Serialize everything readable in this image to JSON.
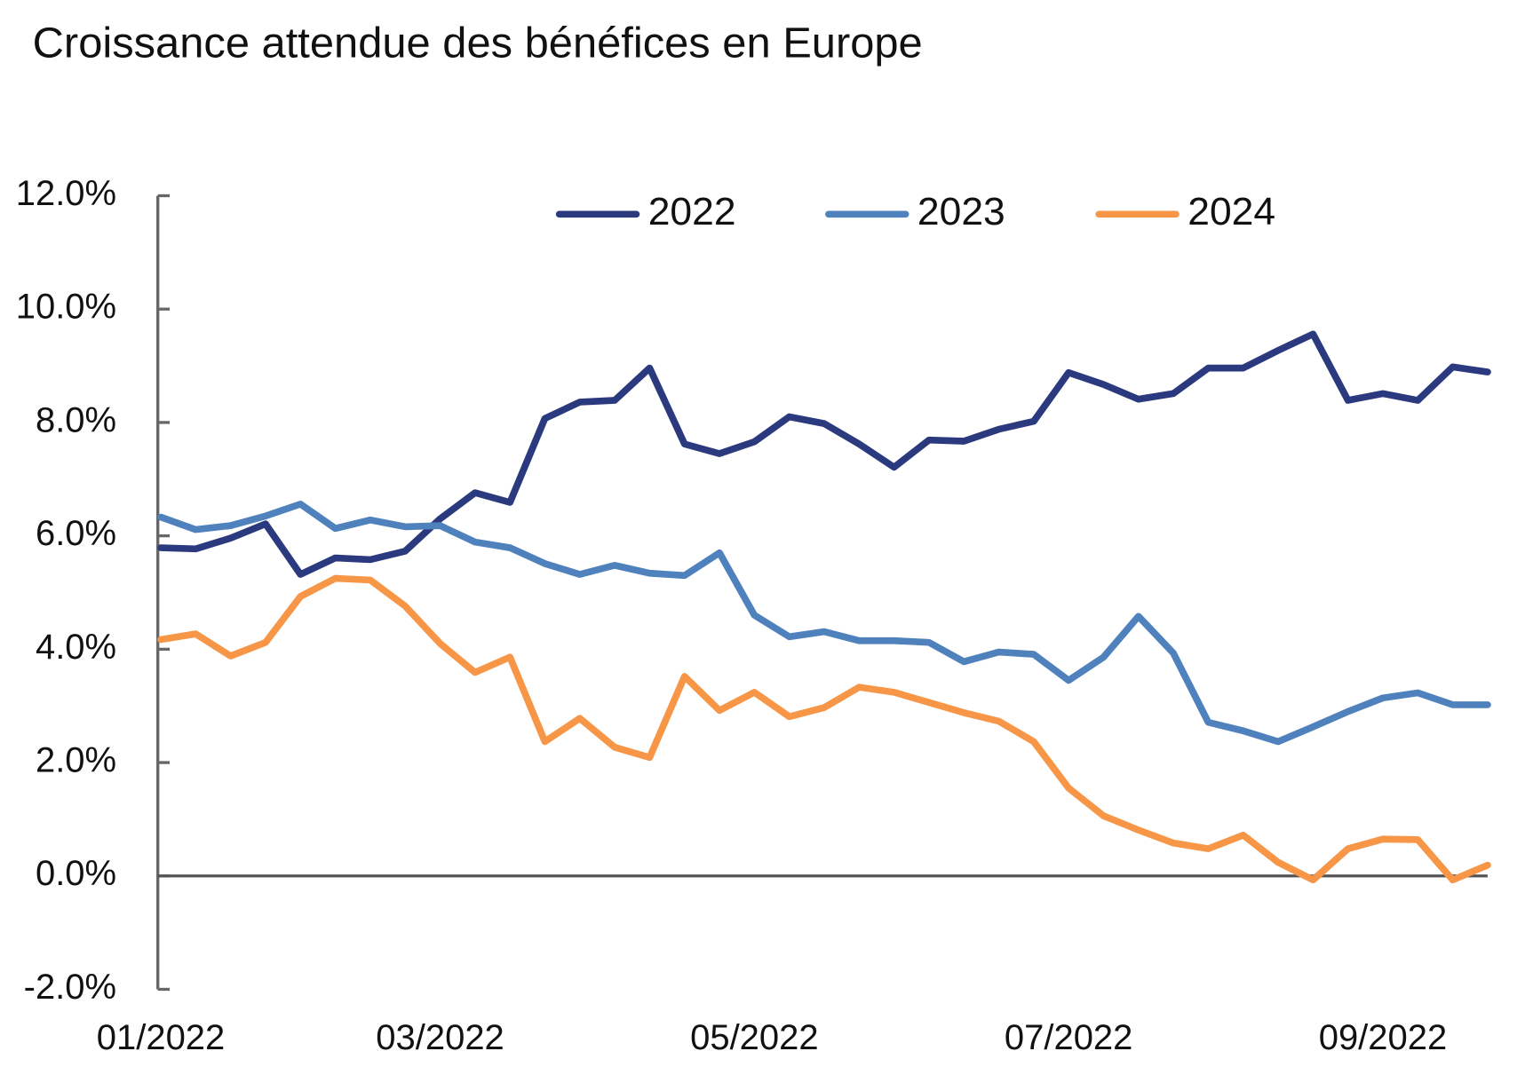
{
  "chart_data": {
    "type": "line",
    "title": "Croissance attendue des bénéfices en Europe",
    "categories": [
      "01/2022",
      null,
      null,
      null,
      null,
      null,
      null,
      null,
      "03/2022",
      null,
      null,
      null,
      null,
      null,
      null,
      null,
      null,
      "05/2022",
      null,
      null,
      null,
      null,
      null,
      null,
      null,
      null,
      "07/2022",
      null,
      null,
      null,
      null,
      null,
      null,
      null,
      null,
      "09/2022",
      null,
      null,
      null
    ],
    "series": [
      {
        "name": "2022",
        "color": "#2b3a7e",
        "values": [
          5.79,
          5.77,
          5.96,
          6.21,
          5.32,
          5.61,
          5.58,
          5.73,
          6.3,
          6.76,
          6.59,
          8.07,
          8.36,
          8.39,
          8.96,
          7.62,
          7.45,
          7.66,
          8.1,
          7.98,
          7.62,
          7.21,
          7.69,
          7.67,
          7.88,
          8.02,
          8.88,
          8.67,
          8.41,
          8.51,
          8.96,
          8.96,
          9.27,
          9.56,
          8.39,
          8.51,
          8.39,
          8.98,
          8.89
        ]
      },
      {
        "name": "2023",
        "color": "#4f81bd",
        "values": [
          6.33,
          6.11,
          6.18,
          6.35,
          6.56,
          6.13,
          6.28,
          6.16,
          6.18,
          5.89,
          5.79,
          5.51,
          5.32,
          5.48,
          5.34,
          5.3,
          5.7,
          4.6,
          4.22,
          4.31,
          4.15,
          4.15,
          4.12,
          3.78,
          3.95,
          3.91,
          3.45,
          3.86,
          4.58,
          3.93,
          2.71,
          2.56,
          2.37,
          2.63,
          2.9,
          3.14,
          3.23,
          3.02,
          3.02
        ]
      },
      {
        "name": "2024",
        "color": "#f79646",
        "values": [
          4.17,
          4.27,
          3.88,
          4.12,
          4.93,
          5.25,
          5.22,
          4.76,
          4.1,
          3.59,
          3.86,
          2.37,
          2.78,
          2.27,
          2.09,
          3.52,
          2.92,
          3.24,
          2.81,
          2.97,
          3.33,
          3.24,
          3.06,
          2.88,
          2.73,
          2.37,
          1.55,
          1.06,
          0.81,
          0.58,
          0.48,
          0.72,
          0.24,
          -0.07,
          0.48,
          0.65,
          0.64,
          -0.07,
          0.19
        ]
      }
    ],
    "ylim": [
      -2,
      12
    ],
    "yticks": [
      {
        "value": -2,
        "label": "-2.0%"
      },
      {
        "value": 0,
        "label": "0.0%"
      },
      {
        "value": 2,
        "label": "2.0%"
      },
      {
        "value": 4,
        "label": "4.0%"
      },
      {
        "value": 6,
        "label": "6.0%"
      },
      {
        "value": 8,
        "label": "8.0%"
      },
      {
        "value": 10,
        "label": "10.0%"
      },
      {
        "value": 12,
        "label": "12.0%"
      }
    ],
    "legend": "top"
  }
}
